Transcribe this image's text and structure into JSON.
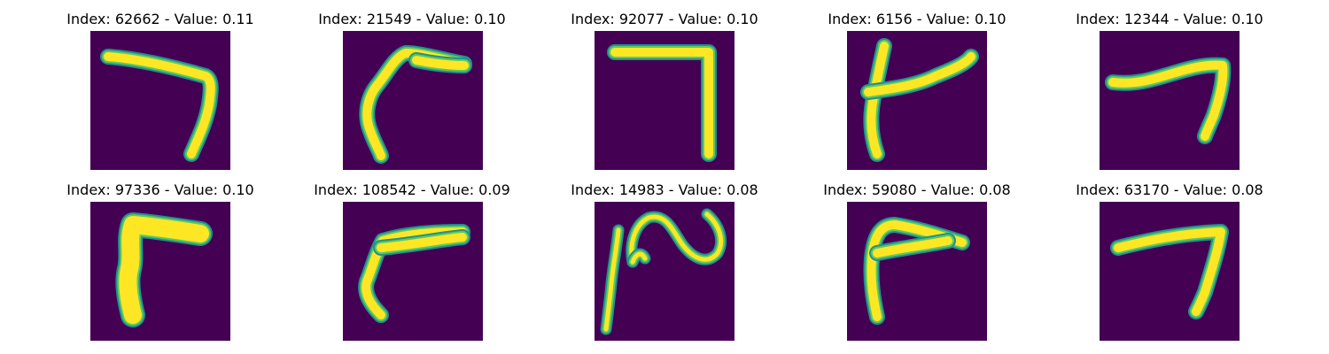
{
  "figure": {
    "background_color": "#440154",
    "stroke_core_color": "#fde725",
    "stroke_mid_color": "#5ec962",
    "stroke_edge_color": "#21918c",
    "panels": [
      {
        "title": "Index: 62662 - Value: 0.11"
      },
      {
        "title": "Index: 21549 - Value: 0.10"
      },
      {
        "title": "Index: 92077 - Value: 0.10"
      },
      {
        "title": "Index: 6156 - Value: 0.10"
      },
      {
        "title": "Index: 12344 - Value: 0.10"
      },
      {
        "title": "Index: 97336 - Value: 0.10"
      },
      {
        "title": "Index: 108542 - Value: 0.09"
      },
      {
        "title": "Index: 14983 - Value: 0.08"
      },
      {
        "title": "Index: 59080 - Value: 0.08"
      },
      {
        "title": "Index: 63170 - Value: 0.08"
      }
    ]
  }
}
